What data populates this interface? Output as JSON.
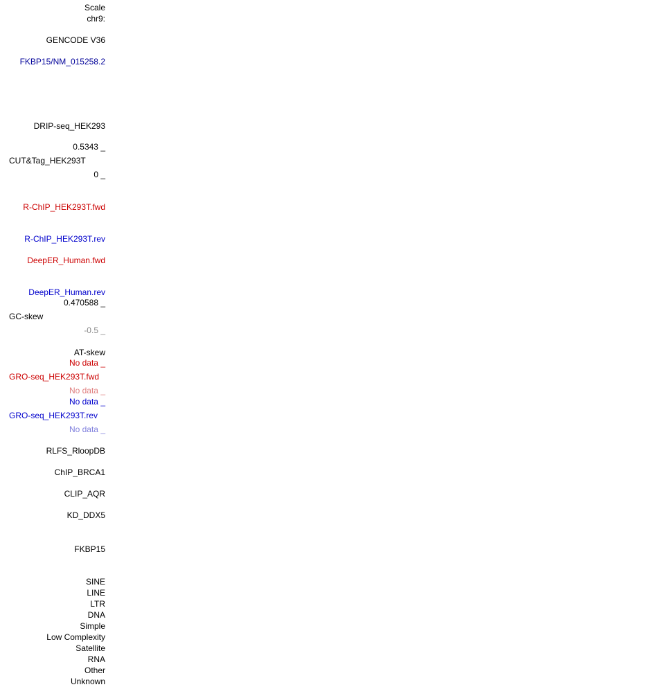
{
  "colors": {
    "black": "#000000",
    "fwd_red": "#cc0000",
    "gene_navy": "#000099",
    "rev_blue": "#0000cc",
    "dim_grey": "#888888",
    "fwd_light": "#e08080",
    "rev_light": "#8080dd"
  },
  "browser": {
    "scale": "Scale",
    "chrom": "chr9:",
    "gencode": "GENCODE V36",
    "transcript": "FKBP15/NM_015258.2",
    "drip": "DRIP-seq_HEK293",
    "cut_max": "0.5343 _",
    "cut_name": "CUT&Tag_HEK293T",
    "cut_min": "0 _",
    "rchip_fwd": "R-ChIP_HEK293T.fwd",
    "rchip_rev": "R-ChIP_HEK293T.rev",
    "deeper_fwd": "DeepER_Human.fwd",
    "deeper_rev": "DeepER_Human.rev",
    "gc_max": "0.470588 _",
    "gc_name": "GC-skew",
    "gc_min": "-0.5 _",
    "at_name": "AT-skew",
    "gro_fwd_top": "No data _",
    "gro_fwd_name": "GRO-seq_HEK293T.fwd",
    "gro_fwd_bottom": "No data _",
    "gro_rev_top": "No data _",
    "gro_rev_name": "GRO-seq_HEK293T.rev",
    "gro_rev_bottom": "No data _",
    "rlfs": "RLFS_RloopDB",
    "chip_brca1": "ChIP_BRCA1",
    "clip_aqr": "CLIP_AQR",
    "kd_ddx5": "KD_DDX5",
    "fkbp15": "FKBP15",
    "repeats": [
      "SINE",
      "LINE",
      "LTR",
      "DNA",
      "Simple",
      "Low Complexity",
      "Satellite",
      "RNA",
      "Other",
      "Unknown"
    ]
  }
}
